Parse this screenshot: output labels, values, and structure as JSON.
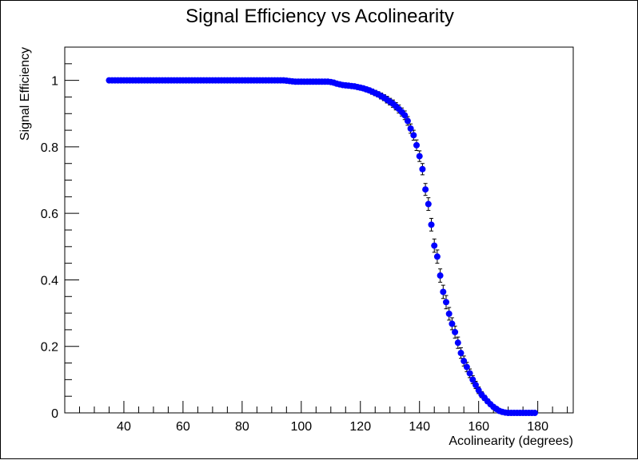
{
  "chart_data": {
    "type": "scatter",
    "title": "Signal Efficiency vs Acolinearity",
    "xlabel": "Acolinearity (degrees)",
    "ylabel": "Signal Efficiency",
    "xlim": [
      20,
      192
    ],
    "ylim": [
      0,
      1.1
    ],
    "x_ticks": [
      40,
      60,
      80,
      100,
      120,
      140,
      160,
      180
    ],
    "x_tick_labels": [
      "40",
      "60",
      "80",
      "100",
      "120",
      "140",
      "160",
      "180"
    ],
    "y_ticks": [
      0,
      0.2,
      0.4,
      0.6,
      0.8,
      1
    ],
    "y_tick_labels": [
      "0",
      "0.2",
      "0.4",
      "0.6",
      "0.8",
      "1"
    ],
    "marker_color": "#0000ff",
    "series": [
      {
        "name": "Signal Efficiency",
        "x": [
          35,
          36,
          37,
          38,
          39,
          40,
          41,
          42,
          43,
          44,
          45,
          46,
          47,
          48,
          49,
          50,
          51,
          52,
          53,
          54,
          55,
          56,
          57,
          58,
          59,
          60,
          61,
          62,
          63,
          64,
          65,
          66,
          67,
          68,
          69,
          70,
          71,
          72,
          73,
          74,
          75,
          76,
          77,
          78,
          79,
          80,
          81,
          82,
          83,
          84,
          85,
          86,
          87,
          88,
          89,
          90,
          91,
          92,
          93,
          94,
          95,
          96,
          97,
          98,
          99,
          100,
          101,
          102,
          103,
          104,
          105,
          106,
          107,
          108,
          109,
          110,
          111,
          112,
          113,
          114,
          115,
          116,
          117,
          118,
          119,
          120,
          121,
          122,
          123,
          124,
          125,
          126,
          127,
          128,
          129,
          130,
          131,
          132,
          133,
          134,
          135,
          136,
          137,
          138,
          139,
          140,
          141,
          142,
          143,
          144,
          145,
          146,
          147,
          148,
          149,
          150,
          151,
          152,
          153,
          154,
          155,
          156,
          157,
          158,
          159,
          160,
          161,
          162,
          163,
          164,
          165,
          166,
          167,
          168,
          169,
          170,
          171,
          172,
          173,
          174,
          175,
          176,
          177,
          178,
          179
        ],
        "y": [
          1,
          1,
          1,
          1,
          1,
          1,
          1,
          1,
          1,
          1,
          1,
          1,
          1,
          1,
          1,
          1,
          1,
          1,
          1,
          1,
          1,
          1,
          1,
          1,
          1,
          1,
          1,
          1,
          1,
          1,
          1,
          1,
          1,
          1,
          1,
          1,
          1,
          1,
          1,
          1,
          1,
          1,
          1,
          1,
          1,
          1,
          1,
          1,
          1,
          1,
          1,
          1,
          1,
          1,
          1,
          1,
          1,
          1,
          1,
          1,
          0.999,
          0.998,
          0.997,
          0.996,
          0.996,
          0.996,
          0.996,
          0.996,
          0.996,
          0.996,
          0.996,
          0.996,
          0.996,
          0.996,
          0.996,
          0.995,
          0.993,
          0.99,
          0.988,
          0.986,
          0.985,
          0.984,
          0.983,
          0.982,
          0.98,
          0.978,
          0.976,
          0.973,
          0.97,
          0.966,
          0.962,
          0.958,
          0.953,
          0.948,
          0.942,
          0.936,
          0.93,
          0.922,
          0.914,
          0.905,
          0.895,
          0.878,
          0.855,
          0.835,
          0.805,
          0.772,
          0.733,
          0.672,
          0.628,
          0.566,
          0.503,
          0.47,
          0.413,
          0.364,
          0.333,
          0.298,
          0.268,
          0.243,
          0.211,
          0.18,
          0.156,
          0.138,
          0.119,
          0.1,
          0.084,
          0.068,
          0.055,
          0.045,
          0.035,
          0.026,
          0.018,
          0.012,
          0.006,
          0.003,
          0.001,
          0,
          0,
          0,
          0,
          0,
          0,
          0,
          0,
          0,
          0
        ],
        "yerr": [
          0.001,
          0.001,
          0.001,
          0.001,
          0.001,
          0.001,
          0.001,
          0.001,
          0.001,
          0.001,
          0.001,
          0.001,
          0.001,
          0.001,
          0.001,
          0.001,
          0.001,
          0.001,
          0.001,
          0.001,
          0.001,
          0.001,
          0.001,
          0.001,
          0.001,
          0.001,
          0.001,
          0.001,
          0.001,
          0.001,
          0.001,
          0.001,
          0.001,
          0.001,
          0.001,
          0.001,
          0.001,
          0.001,
          0.001,
          0.001,
          0.001,
          0.001,
          0.001,
          0.001,
          0.001,
          0.001,
          0.001,
          0.001,
          0.001,
          0.001,
          0.001,
          0.001,
          0.001,
          0.001,
          0.001,
          0.001,
          0.001,
          0.001,
          0.001,
          0.001,
          0.002,
          0.002,
          0.002,
          0.002,
          0.002,
          0.002,
          0.002,
          0.002,
          0.002,
          0.002,
          0.002,
          0.002,
          0.002,
          0.002,
          0.002,
          0.003,
          0.003,
          0.004,
          0.004,
          0.004,
          0.005,
          0.005,
          0.005,
          0.005,
          0.006,
          0.006,
          0.006,
          0.007,
          0.007,
          0.008,
          0.008,
          0.008,
          0.009,
          0.009,
          0.01,
          0.01,
          0.011,
          0.011,
          0.012,
          0.012,
          0.013,
          0.013,
          0.014,
          0.015,
          0.016,
          0.016,
          0.017,
          0.018,
          0.019,
          0.019,
          0.02,
          0.02,
          0.02,
          0.02,
          0.02,
          0.019,
          0.018,
          0.018,
          0.017,
          0.016,
          0.015,
          0.014,
          0.013,
          0.012,
          0.011,
          0.01,
          0.009,
          0.008,
          0.007,
          0.006,
          0.005,
          0.004,
          0.003,
          0.002,
          0.001,
          0,
          0,
          0,
          0,
          0,
          0,
          0,
          0,
          0,
          0
        ]
      }
    ]
  }
}
